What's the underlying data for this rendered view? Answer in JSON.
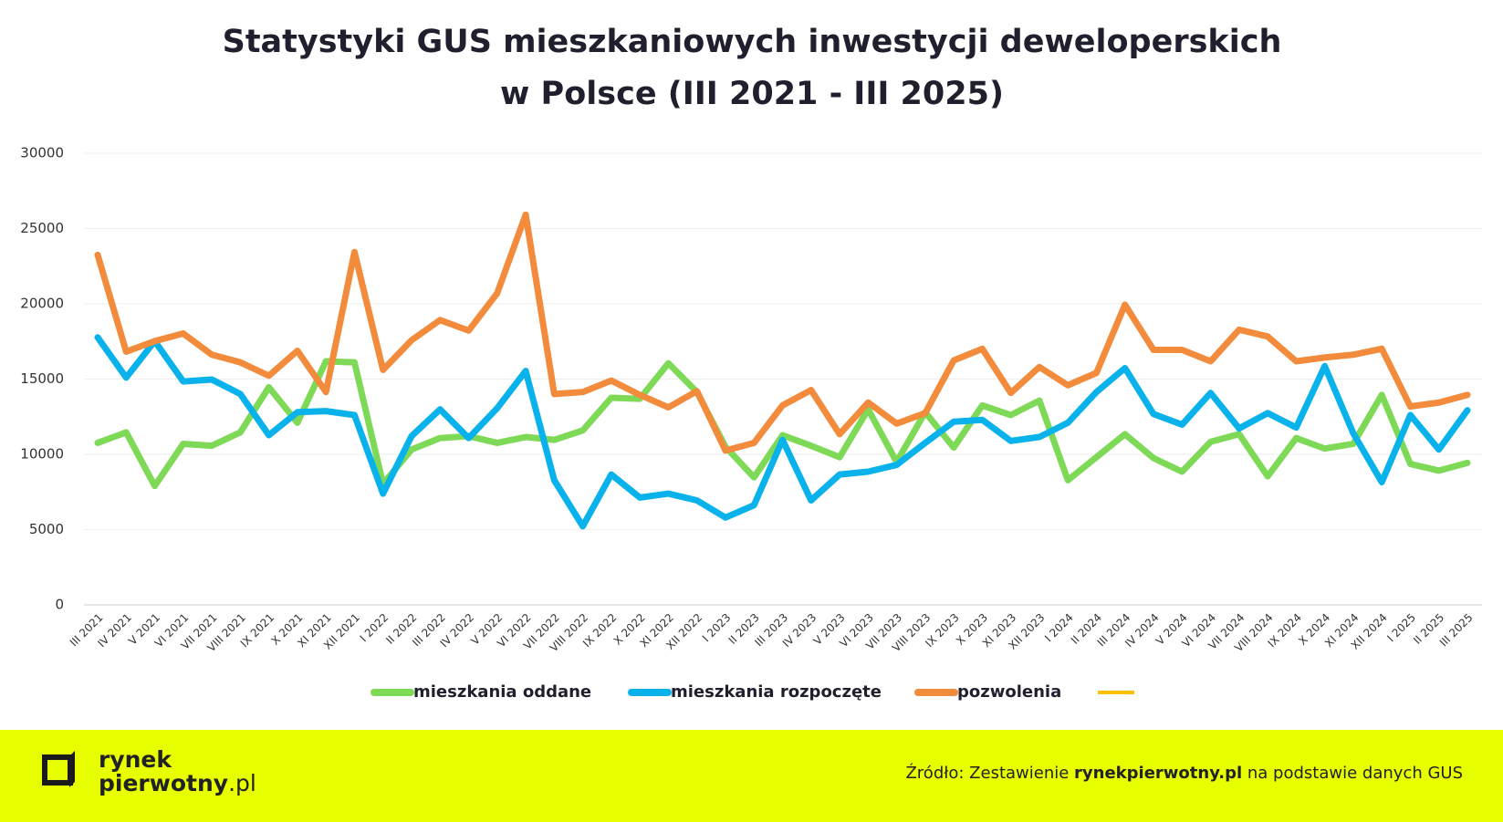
{
  "chart_data": {
    "type": "line",
    "title": [
      "Statystyki GUS mieszkaniowych inwestycji deweloperskich",
      "w Polsce (III 2021 - III 2025)"
    ],
    "categories": [
      "III 2021",
      "IV 2021",
      "V 2021",
      "VI 2021",
      "VII 2021",
      "VIII 2021",
      "IX 2021",
      "X 2021",
      "XI 2021",
      "XII 2021",
      "I 2022",
      "II 2022",
      "III 2022",
      "IV 2022",
      "V 2022",
      "VI 2022",
      "VII 2022",
      "VIII 2022",
      "IX 2022",
      "X 2022",
      "XI 2022",
      "XII 2022",
      "I 2023",
      "II 2023",
      "III 2023",
      "IV 2023",
      "V 2023",
      "VI 2023",
      "VII 2023",
      "VIII 2023",
      "IX 2023",
      "X 2023",
      "XI 2023",
      "XII 2023",
      "I 2024",
      "II 2024",
      "III 2024",
      "IV 2024",
      "V 2024",
      "VI 2024",
      "VII 2024",
      "VIII 2024",
      "IX 2024",
      "X 2024",
      "XI 2024",
      "XII 2024",
      "I 2025",
      "II 2025",
      "III 2025"
    ],
    "series": [
      {
        "name": "mieszkania oddane",
        "color": "#7ed957",
        "values": [
          10760,
          11460,
          7900,
          10700,
          10570,
          11460,
          14460,
          12100,
          16180,
          16110,
          8030,
          10320,
          11080,
          11210,
          10760,
          11150,
          10960,
          11590,
          13760,
          13690,
          16050,
          14140,
          10510,
          8470,
          11270,
          10570,
          9810,
          12990,
          9490,
          12800,
          10450,
          13250,
          12610,
          13570,
          8280,
          9810,
          11340,
          9750,
          8850,
          10830,
          11340,
          8540,
          11080,
          10380,
          10700,
          13950,
          9360,
          8920,
          9430
        ]
      },
      {
        "name": "mieszkania rozpoczęte",
        "color": "#0ab2ec",
        "values": [
          17770,
          15100,
          17520,
          14840,
          14970,
          14010,
          11270,
          12800,
          12870,
          12610,
          7390,
          11210,
          12990,
          11080,
          13060,
          15540,
          8280,
          5220,
          8660,
          7130,
          7390,
          6940,
          5800,
          6620,
          10960,
          6940,
          8660,
          8850,
          9300,
          10760,
          12170,
          12290,
          10890,
          11150,
          12100,
          14140,
          15730,
          12680,
          11970,
          14080,
          11720,
          12740,
          11780,
          15860,
          11400,
          8150,
          12610,
          10320,
          12930
        ]
      },
      {
        "name": "pozwolenia",
        "color": "#f28c3c",
        "values": [
          23250,
          16820,
          17520,
          18030,
          16620,
          16110,
          15220,
          16880,
          14140,
          23440,
          15610,
          17580,
          18920,
          18220,
          20700,
          25920,
          14010,
          14140,
          14900,
          13950,
          13120,
          14200,
          10250,
          10760,
          13250,
          14270,
          11340,
          13440,
          12040,
          12740,
          16240,
          17010,
          14080,
          15800,
          14590,
          15410,
          19940,
          16940,
          16940,
          16180,
          18280,
          17830,
          16180,
          16430,
          16620,
          17010,
          13180,
          13440,
          13950
        ]
      }
    ],
    "ylim": [
      0,
      30000
    ],
    "yticks": [
      0,
      5000,
      10000,
      15000,
      20000,
      25000,
      30000
    ],
    "grid": true
  },
  "footer": {
    "logo": {
      "line1": "rynek",
      "line2": "pierwotny",
      "suffix": ".pl"
    },
    "source": {
      "prefix": "Źródło: Zestawienie ",
      "bold": "rynekpierwotny.pl",
      "suffix": " na podstawie danych GUS"
    }
  }
}
